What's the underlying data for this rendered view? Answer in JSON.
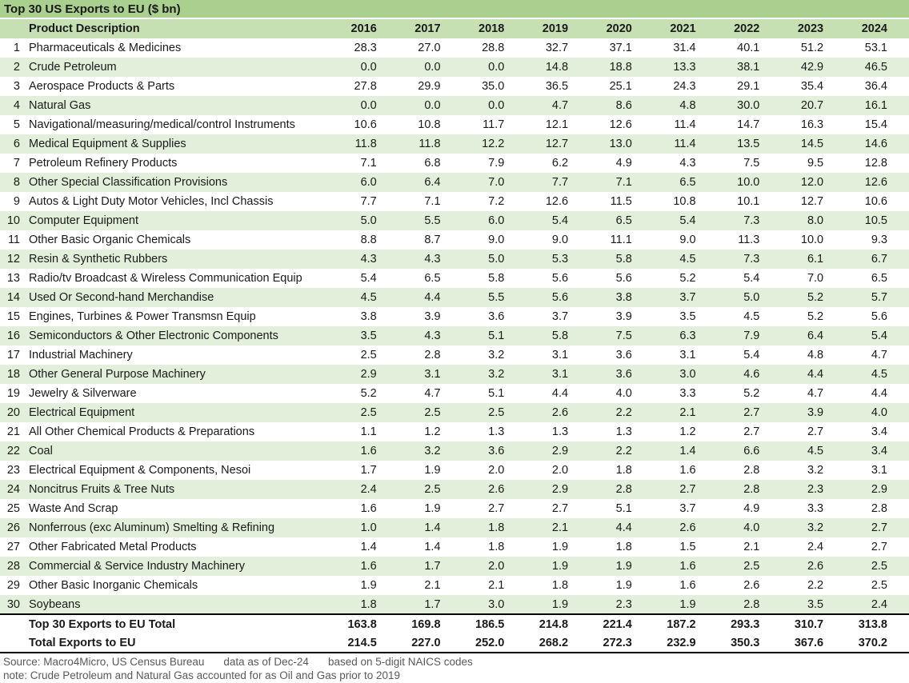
{
  "title": "Top 30 US Exports to EU ($ bn)",
  "chart_data": {
    "type": "table",
    "title": "Top 30 US Exports to EU ($ bn)",
    "product_column_header": "Product Description",
    "years": [
      "2016",
      "2017",
      "2018",
      "2019",
      "2020",
      "2021",
      "2022",
      "2023",
      "2024"
    ],
    "rows": [
      {
        "rank": "1",
        "product": "Pharmaceuticals & Medicines",
        "values": [
          "28.3",
          "27.0",
          "28.8",
          "32.7",
          "37.1",
          "31.4",
          "40.1",
          "51.2",
          "53.1"
        ]
      },
      {
        "rank": "2",
        "product": "Crude Petroleum",
        "values": [
          "0.0",
          "0.0",
          "0.0",
          "14.8",
          "18.8",
          "13.3",
          "38.1",
          "42.9",
          "46.5"
        ]
      },
      {
        "rank": "3",
        "product": "Aerospace Products & Parts",
        "values": [
          "27.8",
          "29.9",
          "35.0",
          "36.5",
          "25.1",
          "24.3",
          "29.1",
          "35.4",
          "36.4"
        ]
      },
      {
        "rank": "4",
        "product": "Natural Gas",
        "values": [
          "0.0",
          "0.0",
          "0.0",
          "4.7",
          "8.6",
          "4.8",
          "30.0",
          "20.7",
          "16.1"
        ]
      },
      {
        "rank": "5",
        "product": "Navigational/measuring/medical/control Instruments",
        "values": [
          "10.6",
          "10.8",
          "11.7",
          "12.1",
          "12.6",
          "11.4",
          "14.7",
          "16.3",
          "15.4"
        ]
      },
      {
        "rank": "6",
        "product": "Medical Equipment & Supplies",
        "values": [
          "11.8",
          "11.8",
          "12.2",
          "12.7",
          "13.0",
          "11.4",
          "13.5",
          "14.5",
          "14.6"
        ]
      },
      {
        "rank": "7",
        "product": "Petroleum Refinery Products",
        "values": [
          "7.1",
          "6.8",
          "7.9",
          "6.2",
          "4.9",
          "4.3",
          "7.5",
          "9.5",
          "12.8"
        ]
      },
      {
        "rank": "8",
        "product": "Other Special Classification Provisions",
        "values": [
          "6.0",
          "6.4",
          "7.0",
          "7.7",
          "7.1",
          "6.5",
          "10.0",
          "12.0",
          "12.6"
        ]
      },
      {
        "rank": "9",
        "product": "Autos & Light Duty Motor Vehicles, Incl Chassis",
        "values": [
          "7.7",
          "7.1",
          "7.2",
          "12.6",
          "11.5",
          "10.8",
          "10.1",
          "12.7",
          "10.6"
        ]
      },
      {
        "rank": "10",
        "product": "Computer Equipment",
        "values": [
          "5.0",
          "5.5",
          "6.0",
          "5.4",
          "6.5",
          "5.4",
          "7.3",
          "8.0",
          "10.5"
        ]
      },
      {
        "rank": "11",
        "product": "Other Basic Organic Chemicals",
        "values": [
          "8.8",
          "8.7",
          "9.0",
          "9.0",
          "11.1",
          "9.0",
          "11.3",
          "10.0",
          "9.3"
        ]
      },
      {
        "rank": "12",
        "product": "Resin & Synthetic Rubbers",
        "values": [
          "4.3",
          "4.3",
          "5.0",
          "5.3",
          "5.8",
          "4.5",
          "7.3",
          "6.1",
          "6.7"
        ]
      },
      {
        "rank": "13",
        "product": "Radio/tv Broadcast & Wireless Communication Equip",
        "values": [
          "5.4",
          "6.5",
          "5.8",
          "5.6",
          "5.6",
          "5.2",
          "5.4",
          "7.0",
          "6.5"
        ]
      },
      {
        "rank": "14",
        "product": "Used Or Second-hand Merchandise",
        "values": [
          "4.5",
          "4.4",
          "5.5",
          "5.6",
          "3.8",
          "3.7",
          "5.0",
          "5.2",
          "5.7"
        ]
      },
      {
        "rank": "15",
        "product": "Engines, Turbines & Power Transmsn Equip",
        "values": [
          "3.8",
          "3.9",
          "3.6",
          "3.7",
          "3.9",
          "3.5",
          "4.5",
          "5.2",
          "5.6"
        ]
      },
      {
        "rank": "16",
        "product": "Semiconductors & Other Electronic Components",
        "values": [
          "3.5",
          "4.3",
          "5.1",
          "5.8",
          "7.5",
          "6.3",
          "7.9",
          "6.4",
          "5.4"
        ]
      },
      {
        "rank": "17",
        "product": "Industrial Machinery",
        "values": [
          "2.5",
          "2.8",
          "3.2",
          "3.1",
          "3.6",
          "3.1",
          "5.4",
          "4.8",
          "4.7"
        ]
      },
      {
        "rank": "18",
        "product": "Other General Purpose Machinery",
        "values": [
          "2.9",
          "3.1",
          "3.2",
          "3.1",
          "3.6",
          "3.0",
          "4.6",
          "4.4",
          "4.5"
        ]
      },
      {
        "rank": "19",
        "product": "Jewelry & Silverware",
        "values": [
          "5.2",
          "4.7",
          "5.1",
          "4.4",
          "4.0",
          "3.3",
          "5.2",
          "4.7",
          "4.4"
        ]
      },
      {
        "rank": "20",
        "product": "Electrical Equipment",
        "values": [
          "2.5",
          "2.5",
          "2.5",
          "2.6",
          "2.2",
          "2.1",
          "2.7",
          "3.9",
          "4.0"
        ]
      },
      {
        "rank": "21",
        "product": "All Other Chemical Products & Preparations",
        "values": [
          "1.1",
          "1.2",
          "1.3",
          "1.3",
          "1.3",
          "1.2",
          "2.7",
          "2.7",
          "3.4"
        ]
      },
      {
        "rank": "22",
        "product": "Coal",
        "values": [
          "1.6",
          "3.2",
          "3.6",
          "2.9",
          "2.2",
          "1.4",
          "6.6",
          "4.5",
          "3.4"
        ]
      },
      {
        "rank": "23",
        "product": "Electrical Equipment & Components, Nesoi",
        "values": [
          "1.7",
          "1.9",
          "2.0",
          "2.0",
          "1.8",
          "1.6",
          "2.8",
          "3.2",
          "3.1"
        ]
      },
      {
        "rank": "24",
        "product": "Noncitrus Fruits & Tree Nuts",
        "values": [
          "2.4",
          "2.5",
          "2.6",
          "2.9",
          "2.8",
          "2.7",
          "2.8",
          "2.3",
          "2.9"
        ]
      },
      {
        "rank": "25",
        "product": "Waste And Scrap",
        "values": [
          "1.6",
          "1.9",
          "2.7",
          "2.7",
          "5.1",
          "3.7",
          "4.9",
          "3.3",
          "2.8"
        ]
      },
      {
        "rank": "26",
        "product": "Nonferrous (exc Aluminum) Smelting & Refining",
        "values": [
          "1.0",
          "1.4",
          "1.8",
          "2.1",
          "4.4",
          "2.6",
          "4.0",
          "3.2",
          "2.7"
        ]
      },
      {
        "rank": "27",
        "product": "Other Fabricated Metal Products",
        "values": [
          "1.4",
          "1.4",
          "1.8",
          "1.9",
          "1.8",
          "1.5",
          "2.1",
          "2.4",
          "2.7"
        ]
      },
      {
        "rank": "28",
        "product": "Commercial & Service Industry Machinery",
        "values": [
          "1.6",
          "1.7",
          "2.0",
          "1.9",
          "1.9",
          "1.6",
          "2.5",
          "2.6",
          "2.5"
        ]
      },
      {
        "rank": "29",
        "product": "Other Basic Inorganic Chemicals",
        "values": [
          "1.9",
          "2.1",
          "2.1",
          "1.8",
          "1.9",
          "1.6",
          "2.6",
          "2.2",
          "2.5"
        ]
      },
      {
        "rank": "30",
        "product": "Soybeans",
        "values": [
          "1.8",
          "1.7",
          "3.0",
          "1.9",
          "2.3",
          "1.9",
          "2.8",
          "3.5",
          "2.4"
        ]
      }
    ],
    "totals": [
      {
        "label": "Top 30 Exports to EU Total",
        "values": [
          "163.8",
          "169.8",
          "186.5",
          "214.8",
          "221.4",
          "187.2",
          "293.3",
          "310.7",
          "313.8"
        ]
      },
      {
        "label": "Total Exports to EU",
        "values": [
          "214.5",
          "227.0",
          "252.0",
          "268.2",
          "272.3",
          "232.9",
          "350.3",
          "367.6",
          "370.2"
        ]
      }
    ]
  },
  "footer": {
    "source": "Source: Macro4Micro, US Census Bureau",
    "data_as_of": "data as of Dec-24",
    "basis": "based on 5-digit NAICS codes",
    "note": "note: Crude Petroleum and Natural Gas accounted for as Oil and Gas prior to 2019"
  },
  "colors": {
    "title_bg": "#a9d08e",
    "header_bg": "#c6e0b4",
    "band_bg": "#e2efda",
    "text": "#1a1a1a",
    "footer_text": "#595959",
    "total_border": "#000000"
  }
}
